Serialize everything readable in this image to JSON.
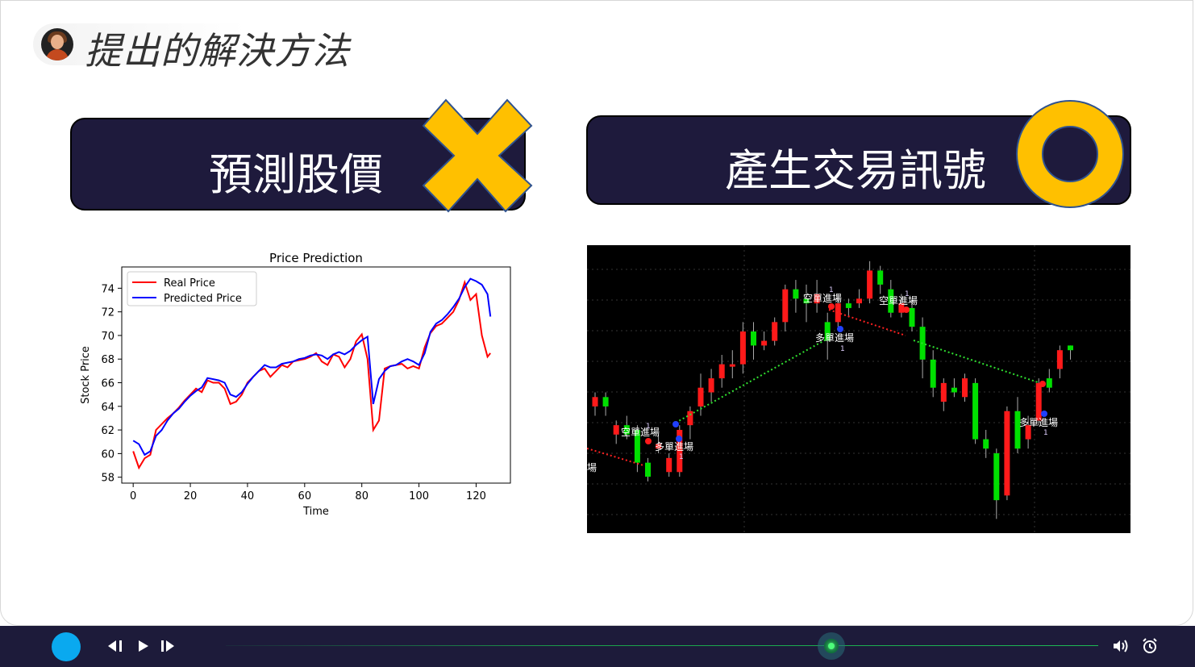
{
  "slide": {
    "title": "提出的解決方法",
    "left_banner": {
      "label": "預測股價",
      "mark": "cross"
    },
    "right_banner": {
      "label": "產生交易訊號",
      "mark": "circle"
    },
    "accent_color": "#FFC000",
    "banner_color": "#1E1A3C"
  },
  "chart_data": {
    "type": "line",
    "title": "Price Prediction",
    "xlabel": "Time",
    "ylabel": "Stock Price",
    "xlim": [
      -4,
      132
    ],
    "ylim": [
      57.5,
      75.8
    ],
    "xticks": [
      0,
      20,
      40,
      60,
      80,
      100,
      120
    ],
    "yticks": [
      58,
      60,
      62,
      64,
      66,
      68,
      70,
      72,
      74
    ],
    "legend_position": "top-left",
    "grid": false,
    "series": [
      {
        "name": "Real Price",
        "color": "#FF0000",
        "x": [
          0,
          2,
          4,
          6,
          8,
          10,
          12,
          14,
          16,
          18,
          20,
          22,
          24,
          26,
          28,
          30,
          32,
          34,
          36,
          38,
          40,
          42,
          44,
          46,
          48,
          50,
          52,
          54,
          56,
          58,
          60,
          62,
          64,
          66,
          68,
          70,
          72,
          74,
          76,
          78,
          80,
          82,
          84,
          86,
          88,
          90,
          92,
          94,
          96,
          98,
          100,
          102,
          104,
          106,
          108,
          110,
          112,
          114,
          116,
          118,
          120,
          122,
          124,
          125
        ],
        "y": [
          60.2,
          58.8,
          59.6,
          59.9,
          62.0,
          62.5,
          63.0,
          63.4,
          63.9,
          64.5,
          65.0,
          65.5,
          65.2,
          66.2,
          66.0,
          66.0,
          65.5,
          64.2,
          64.4,
          65.0,
          66.0,
          66.5,
          67.0,
          67.2,
          66.5,
          67.0,
          67.5,
          67.3,
          67.8,
          67.9,
          68.0,
          68.2,
          68.5,
          67.8,
          67.5,
          68.4,
          68.2,
          67.3,
          68.0,
          69.5,
          70.1,
          68.0,
          62.0,
          62.8,
          67.2,
          67.4,
          67.5,
          67.6,
          67.2,
          67.4,
          67.2,
          69.0,
          70.2,
          70.8,
          71.0,
          71.5,
          72.0,
          73.0,
          74.5,
          73.0,
          73.5,
          70.0,
          68.2,
          68.5
        ]
      },
      {
        "name": "Predicted Price",
        "color": "#0000FF",
        "x": [
          0,
          2,
          4,
          6,
          8,
          10,
          12,
          14,
          16,
          18,
          20,
          22,
          24,
          26,
          28,
          30,
          32,
          34,
          36,
          38,
          40,
          42,
          44,
          46,
          48,
          50,
          52,
          54,
          56,
          58,
          60,
          62,
          64,
          66,
          68,
          70,
          72,
          74,
          76,
          78,
          80,
          82,
          84,
          86,
          88,
          90,
          92,
          94,
          96,
          98,
          100,
          102,
          104,
          106,
          108,
          110,
          112,
          114,
          116,
          118,
          120,
          122,
          124,
          125
        ],
        "y": [
          61.1,
          60.8,
          59.9,
          60.2,
          61.5,
          62.0,
          62.8,
          63.4,
          63.8,
          64.4,
          64.9,
          65.3,
          65.6,
          66.4,
          66.3,
          66.2,
          66.0,
          65.0,
          64.8,
          65.2,
          65.9,
          66.5,
          67.0,
          67.5,
          67.3,
          67.3,
          67.6,
          67.7,
          67.8,
          68.0,
          68.1,
          68.3,
          68.4,
          68.3,
          68.0,
          68.4,
          68.6,
          68.4,
          68.7,
          69.2,
          69.6,
          69.9,
          64.2,
          66.3,
          67.0,
          67.4,
          67.5,
          67.8,
          68.0,
          67.8,
          67.5,
          68.5,
          70.3,
          71.0,
          71.3,
          71.8,
          72.4,
          73.1,
          74.1,
          74.8,
          74.6,
          74.3,
          73.5,
          71.6
        ]
      }
    ]
  },
  "trading_chart": {
    "labels": {
      "short_entry": "空單進場",
      "long_entry": "多單進場",
      "count": "1",
      "cut_label": "場"
    },
    "candles": [
      {
        "o": 64,
        "c": 66,
        "h": 67,
        "l": 62,
        "up": false
      },
      {
        "o": 66,
        "c": 64,
        "h": 67,
        "l": 62,
        "up": true
      },
      {
        "o": 60,
        "c": 58,
        "h": 61,
        "l": 56,
        "up": false
      },
      {
        "o": 58,
        "c": 60,
        "h": 62,
        "l": 57,
        "up": true
      },
      {
        "o": 59,
        "c": 52,
        "h": 60,
        "l": 50,
        "up": true
      },
      {
        "o": 52,
        "c": 49,
        "h": 53,
        "l": 48,
        "up": true
      },
      {
        "o": 56,
        "c": 55,
        "h": 58,
        "l": 54,
        "up": false
      },
      {
        "o": 50,
        "c": 53,
        "h": 54,
        "l": 49,
        "up": false
      },
      {
        "o": 50,
        "c": 59,
        "h": 60,
        "l": 49,
        "up": false
      },
      {
        "o": 60,
        "c": 63,
        "h": 64,
        "l": 57,
        "up": false
      },
      {
        "o": 64,
        "c": 68,
        "h": 71,
        "l": 62,
        "up": false
      },
      {
        "o": 67,
        "c": 70,
        "h": 72,
        "l": 65,
        "up": false
      },
      {
        "o": 70,
        "c": 73,
        "h": 75,
        "l": 68,
        "up": false
      },
      {
        "o": 73,
        "c": 73,
        "h": 76,
        "l": 70,
        "up": false
      },
      {
        "o": 73,
        "c": 80,
        "h": 82,
        "l": 71,
        "up": false
      },
      {
        "o": 80,
        "c": 77,
        "h": 82,
        "l": 74,
        "up": true
      },
      {
        "o": 77,
        "c": 78,
        "h": 80,
        "l": 76,
        "up": false
      },
      {
        "o": 78,
        "c": 82,
        "h": 83,
        "l": 77,
        "up": false
      },
      {
        "o": 82,
        "c": 89,
        "h": 90,
        "l": 80,
        "up": false
      },
      {
        "o": 89,
        "c": 87,
        "h": 91,
        "l": 84,
        "up": true
      },
      {
        "o": 87,
        "c": 86,
        "h": 90,
        "l": 82,
        "up": true
      },
      {
        "o": 86,
        "c": 88,
        "h": 91,
        "l": 84,
        "up": false
      },
      {
        "o": 82,
        "c": 78,
        "h": 84,
        "l": 74,
        "up": true
      },
      {
        "o": 82,
        "c": 86,
        "h": 88,
        "l": 81,
        "up": false
      },
      {
        "o": 86,
        "c": 85,
        "h": 87,
        "l": 83,
        "up": true
      },
      {
        "o": 86,
        "c": 87,
        "h": 89,
        "l": 85,
        "up": false
      },
      {
        "o": 87,
        "c": 93,
        "h": 95,
        "l": 86,
        "up": false
      },
      {
        "o": 93,
        "c": 90,
        "h": 94,
        "l": 88,
        "up": true
      },
      {
        "o": 89,
        "c": 84,
        "h": 91,
        "l": 83,
        "up": true
      },
      {
        "o": 84,
        "c": 86,
        "h": 88,
        "l": 83,
        "up": false
      },
      {
        "o": 85,
        "c": 81,
        "h": 87,
        "l": 80,
        "up": true
      },
      {
        "o": 81,
        "c": 74,
        "h": 83,
        "l": 70,
        "up": true
      },
      {
        "o": 74,
        "c": 68,
        "h": 76,
        "l": 66,
        "up": true
      },
      {
        "o": 65,
        "c": 69,
        "h": 70,
        "l": 63,
        "up": false
      },
      {
        "o": 67,
        "c": 68,
        "h": 70,
        "l": 66,
        "up": true
      },
      {
        "o": 66,
        "c": 70,
        "h": 71,
        "l": 65,
        "up": false
      },
      {
        "o": 69,
        "c": 57,
        "h": 70,
        "l": 56,
        "up": true
      },
      {
        "o": 57,
        "c": 55,
        "h": 59,
        "l": 53,
        "up": true
      },
      {
        "o": 54,
        "c": 44,
        "h": 55,
        "l": 40,
        "up": true
      },
      {
        "o": 45,
        "c": 63,
        "h": 64,
        "l": 44,
        "up": false
      },
      {
        "o": 63,
        "c": 55,
        "h": 66,
        "l": 54,
        "up": true
      },
      {
        "o": 57,
        "c": 60,
        "h": 62,
        "l": 55,
        "up": false
      },
      {
        "o": 61,
        "c": 69,
        "h": 70,
        "l": 60,
        "up": false
      },
      {
        "o": 68,
        "c": 70,
        "h": 72,
        "l": 67,
        "up": true
      },
      {
        "o": 72,
        "c": 76,
        "h": 77,
        "l": 70,
        "up": false
      },
      {
        "o": 77,
        "c": 76,
        "h": 77,
        "l": 74,
        "up": true
      }
    ]
  },
  "player": {
    "prev_icon": "rewind-step-icon",
    "play_icon": "play-icon",
    "next_icon": "forward-step-icon",
    "volume_icon": "speaker-waves-icon",
    "alarm_icon": "alarm-clock-icon",
    "progress": 0.69
  }
}
